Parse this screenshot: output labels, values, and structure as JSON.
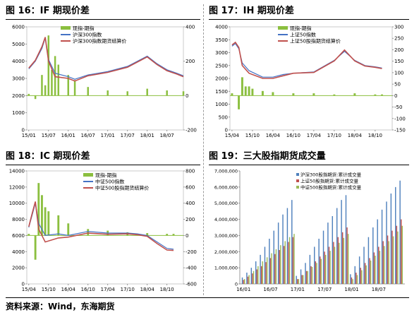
{
  "footer": {
    "source": "资料来源：Wind，东海期货"
  },
  "panels": [
    {
      "title": "图 16：IF 期现价差",
      "chart_data": {
        "type": "line",
        "legend": [
          "现指-期指",
          "沪深300指数",
          "沪深300指数期货结算价"
        ],
        "legend_placement": "top",
        "x_ticks": [
          "15/01",
          "15/07",
          "16/01",
          "16/07",
          "17/01",
          "17/07",
          "18/01",
          "18/07"
        ],
        "left_ticks": [
          "6000",
          "5000",
          "4000",
          "3000",
          "2000",
          "1000",
          "0"
        ],
        "right_ticks": [
          "400",
          "200",
          "0",
          "-200"
        ],
        "ylim_left": [
          0,
          6000
        ],
        "ylim_right": [
          -200,
          400
        ],
        "series": [
          {
            "name": "沪深300指数",
            "kind": "line",
            "axis": "left",
            "color": "#4472c4",
            "x": [
              "15/01",
              "15/03",
              "15/05",
              "15/06",
              "15/07",
              "15/09",
              "16/01",
              "16/03",
              "16/07",
              "17/01",
              "17/07",
              "18/01",
              "18/04",
              "18/07",
              "18/10",
              "18/12"
            ],
            "values": [
              3550,
              4000,
              4750,
              5350,
              4100,
              3300,
              3100,
              2950,
              3200,
              3400,
              3700,
              4300,
              3850,
              3500,
              3300,
              3150
            ]
          },
          {
            "name": "沪深300指数期货结算价",
            "kind": "line",
            "axis": "left",
            "color": "#c0504d",
            "x": [
              "15/01",
              "15/03",
              "15/05",
              "15/06",
              "15/07",
              "15/09",
              "16/01",
              "16/03",
              "16/07",
              "17/01",
              "17/07",
              "18/01",
              "18/04",
              "18/07",
              "18/10",
              "18/12"
            ],
            "values": [
              3600,
              4050,
              4850,
              5400,
              4000,
              3100,
              3000,
              2850,
              3150,
              3350,
              3650,
              4250,
              3800,
              3450,
              3250,
              3100
            ]
          },
          {
            "name": "现指-期指",
            "kind": "bar",
            "axis": "right",
            "color": "#8bbf3f",
            "x": [
              "15/01",
              "15/03",
              "15/05",
              "15/06",
              "15/07",
              "15/08",
              "15/09",
              "15/10",
              "16/01",
              "16/03",
              "16/07",
              "17/01",
              "17/07",
              "18/01",
              "18/07",
              "18/12"
            ],
            "values": [
              10,
              -20,
              120,
              60,
              350,
              150,
              230,
              180,
              120,
              90,
              50,
              30,
              25,
              40,
              30,
              25
            ]
          }
        ]
      }
    },
    {
      "title": "图 17：IH 期现价差",
      "chart_data": {
        "type": "line",
        "legend": [
          "现指-期指",
          "上证50指数",
          "上证50股指期货结算价"
        ],
        "legend_placement": "top",
        "x_ticks": [
          "15/04",
          "15/10",
          "16/04",
          "16/10",
          "17/04",
          "17/10",
          "18/04",
          "18/10"
        ],
        "left_ticks": [
          "4000",
          "3500",
          "3000",
          "2500",
          "2000",
          "1500",
          "1000",
          "500",
          "0"
        ],
        "right_ticks": [
          "300",
          "250",
          "200",
          "150",
          "100",
          "50",
          "0",
          "-50",
          "-100",
          "-150"
        ],
        "ylim_left": [
          0,
          4000
        ],
        "ylim_right": [
          -150,
          300
        ],
        "series": [
          {
            "name": "上证50指数",
            "kind": "line",
            "axis": "left",
            "color": "#4472c4",
            "x": [
              "15/04",
              "15/05",
              "15/06",
              "15/07",
              "15/09",
              "16/01",
              "16/04",
              "16/07",
              "16/10",
              "17/04",
              "17/10",
              "18/01",
              "18/04",
              "18/07",
              "18/10",
              "18/12"
            ],
            "values": [
              3250,
              3350,
              3150,
              2600,
              2300,
              2050,
              2050,
              2150,
              2200,
              2250,
              2700,
              3050,
              2700,
              2500,
              2450,
              2400
            ]
          },
          {
            "name": "上证50股指期货结算价",
            "kind": "line",
            "axis": "left",
            "color": "#c0504d",
            "x": [
              "15/04",
              "15/05",
              "15/06",
              "15/07",
              "15/09",
              "16/01",
              "16/04",
              "16/07",
              "16/10",
              "17/04",
              "17/10",
              "18/01",
              "18/04",
              "18/07",
              "18/10",
              "18/12"
            ],
            "values": [
              3300,
              3400,
              3200,
              2500,
              2200,
              2000,
              2000,
              2100,
              2200,
              2230,
              2680,
              3100,
              2680,
              2480,
              2430,
              2380
            ]
          },
          {
            "name": "现指-期指",
            "kind": "bar",
            "axis": "right",
            "color": "#8bbf3f",
            "x": [
              "15/04",
              "15/06",
              "15/07",
              "15/08",
              "15/09",
              "15/10",
              "16/01",
              "16/04",
              "16/10",
              "17/04",
              "17/10",
              "18/04",
              "18/10",
              "18/12"
            ],
            "values": [
              10,
              -60,
              80,
              40,
              40,
              30,
              20,
              15,
              10,
              10,
              5,
              10,
              5,
              5
            ]
          }
        ]
      }
    },
    {
      "title": "图 18：IC 期现价差",
      "chart_data": {
        "type": "line",
        "legend": [
          "现指-期指",
          "中证500指数",
          "中证500股指期货结算价"
        ],
        "legend_placement": "top",
        "x_ticks": [
          "15/04",
          "15/10",
          "16/04",
          "16/10",
          "17/04",
          "17/10",
          "18/04",
          "18/10"
        ],
        "left_ticks": [
          "14000",
          "12000",
          "10000",
          "8000",
          "6000",
          "4000",
          "2000",
          "0"
        ],
        "right_ticks": [
          "800",
          "600",
          "400",
          "200",
          "0",
          "-200",
          "-400",
          "-600"
        ],
        "ylim_left": [
          0,
          14000
        ],
        "ylim_right": [
          -600,
          800
        ],
        "series": [
          {
            "name": "中证500指数",
            "kind": "line",
            "axis": "left",
            "color": "#4472c4",
            "x": [
              "15/04",
              "15/05",
              "15/06",
              "15/07",
              "15/09",
              "16/01",
              "16/04",
              "16/10",
              "17/04",
              "17/10",
              "18/01",
              "18/04",
              "18/07",
              "18/10",
              "18/12"
            ],
            "values": [
              7000,
              8500,
              10000,
              7500,
              6000,
              6200,
              6000,
              6500,
              6300,
              6300,
              6200,
              6000,
              5200,
              4400,
              4300
            ]
          },
          {
            "name": "中证500股指期货结算价",
            "kind": "line",
            "axis": "left",
            "color": "#c0504d",
            "x": [
              "15/04",
              "15/05",
              "15/06",
              "15/07",
              "15/09",
              "16/01",
              "16/04",
              "16/10",
              "17/04",
              "17/10",
              "18/01",
              "18/04",
              "18/07",
              "18/10",
              "18/12"
            ],
            "values": [
              7100,
              8700,
              10200,
              6800,
              5200,
              5700,
              5800,
              6300,
              6150,
              6200,
              6100,
              5900,
              5000,
              4200,
              4150
            ]
          },
          {
            "name": "现指-期指",
            "kind": "bar",
            "axis": "right",
            "color": "#8bbf3f",
            "x": [
              "15/04",
              "15/06",
              "15/07",
              "15/08",
              "15/09",
              "15/10",
              "16/01",
              "16/04",
              "16/10",
              "17/04",
              "17/10",
              "18/04",
              "18/10",
              "18/12"
            ],
            "values": [
              20,
              -300,
              650,
              500,
              350,
              300,
              250,
              150,
              80,
              60,
              40,
              30,
              20,
              20
            ]
          }
        ]
      }
    },
    {
      "title": "图 19：三大股指期货成交量",
      "chart_data": {
        "type": "bar",
        "legend": [
          "沪深300股指期货:累计成交量",
          "上证50股指期货:累计成交量",
          "中证500股指期货:累计成交量"
        ],
        "legend_placement": "top",
        "x_ticks": [
          "16/01",
          "16/07",
          "17/01",
          "17/07",
          "18/01",
          "18/07"
        ],
        "y_ticks": [
          "7,000,000",
          "6,000,000",
          "5,000,000",
          "4,000,000",
          "3,000,000",
          "2,000,000",
          "1,000,000",
          "0"
        ],
        "ylim": [
          0,
          7000000
        ],
        "categories": [
          "16/01",
          "16/02",
          "16/03",
          "16/04",
          "16/05",
          "16/06",
          "16/07",
          "16/08",
          "16/09",
          "16/10",
          "16/11",
          "16/12",
          "17/01",
          "17/02",
          "17/03",
          "17/04",
          "17/05",
          "17/06",
          "17/07",
          "17/08",
          "17/09",
          "17/10",
          "17/11",
          "17/12",
          "18/01",
          "18/02",
          "18/03",
          "18/04",
          "18/05",
          "18/06",
          "18/07",
          "18/08",
          "18/09",
          "18/10",
          "18/11",
          "18/12"
        ],
        "series": [
          {
            "name": "沪深300股指期货:累计成交量",
            "color": "#4f81bd",
            "values": [
              400000,
              700000,
              1000000,
              1400000,
              1800000,
              2300000,
              2800000,
              3300000,
              3800000,
              4300000,
              4700000,
              5200000,
              500000,
              900000,
              1300000,
              1800000,
              2300000,
              2800000,
              3300000,
              3800000,
              4200000,
              4700000,
              5200000,
              5500000,
              600000,
              1100000,
              1700000,
              2300000,
              2900000,
              3500000,
              4000000,
              4600000,
              5100000,
              5600000,
              6000000,
              6400000
            ]
          },
          {
            "name": "上证50股指期货:累计成交量",
            "color": "#c0504d",
            "values": [
              250000,
              450000,
              650000,
              900000,
              1100000,
              1350000,
              1600000,
              1850000,
              2100000,
              2350000,
              2600000,
              2900000,
              300000,
              550000,
              800000,
              1100000,
              1400000,
              1700000,
              2000000,
              2300000,
              2600000,
              2900000,
              3200000,
              3500000,
              400000,
              700000,
              1000000,
              1300000,
              1600000,
              1950000,
              2300000,
              2650000,
              3000000,
              3300000,
              3600000,
              4000000
            ]
          },
          {
            "name": "中证500股指期货:累计成交量",
            "color": "#9bbb59",
            "values": [
              300000,
              550000,
              800000,
              1100000,
              1400000,
              1650000,
              1900000,
              2150000,
              2400000,
              2650000,
              2900000,
              3100000,
              300000,
              550000,
              800000,
              1050000,
              1300000,
              1550000,
              1800000,
              2050000,
              2300000,
              2550000,
              2850000,
              3100000,
              300000,
              550000,
              850000,
              1150000,
              1450000,
              1750000,
              2050000,
              2350000,
              2650000,
              2950000,
              3250000,
              3600000
            ]
          }
        ]
      }
    }
  ]
}
